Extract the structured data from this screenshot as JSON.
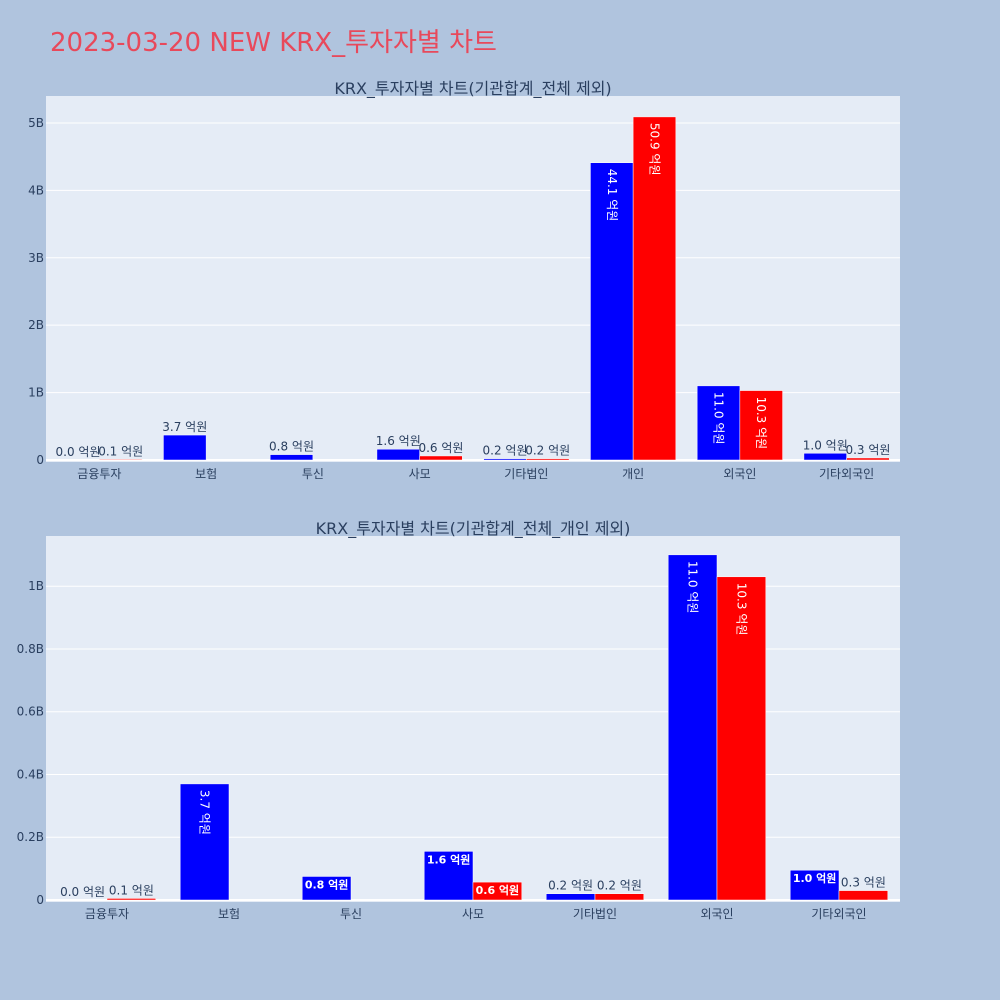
{
  "page_title": "2023-03-20 NEW KRX_투자자별 차트",
  "colors": {
    "series_a": "#0000ff",
    "series_b": "#ff0000",
    "plot_bg": "#e5ecf6",
    "page_bg": "#b0c4de",
    "title": "#e8495b"
  },
  "chart_data": [
    {
      "type": "bar",
      "title": "KRX_투자자별 차트(기관합계_전체 제외)",
      "xlabel": "",
      "ylabel": "",
      "ylim": [
        0,
        5400000000
      ],
      "yticks": [
        0,
        1000000000,
        2000000000,
        3000000000,
        4000000000,
        5000000000
      ],
      "ytick_labels": [
        "0",
        "1B",
        "2B",
        "3B",
        "4B",
        "5B"
      ],
      "grid": true,
      "legend": "none",
      "categories": [
        "금융투자",
        "보험",
        "투신",
        "사모",
        "기타법인",
        "개인",
        "외국인",
        "기타외국인"
      ],
      "series": [
        {
          "color": "#0000ff",
          "values": [
            0,
            370000000,
            80000000,
            160000000,
            20000000,
            4410000000,
            1100000000,
            100000000
          ],
          "labels": [
            "0.0 억원",
            "3.7 억원",
            "0.8 억원",
            "1.6 억원",
            "0.2 억원",
            "44.1 억원",
            "11.0 억원",
            "1.0 억원"
          ]
        },
        {
          "color": "#ff0000",
          "values": [
            10000000,
            0,
            0,
            60000000,
            20000000,
            5090000000,
            1030000000,
            30000000
          ],
          "labels": [
            "0.1 억원",
            "",
            "",
            "0.6 억원",
            "0.2 억원",
            "50.9 억원",
            "10.3 억원",
            "0.3 억원"
          ]
        }
      ]
    },
    {
      "type": "bar",
      "title": "KRX_투자자별 차트(기관합계_전체_개인 제외)",
      "xlabel": "",
      "ylabel": "",
      "ylim": [
        0,
        1160000000
      ],
      "yticks": [
        0,
        200000000,
        400000000,
        600000000,
        800000000,
        1000000000
      ],
      "ytick_labels": [
        "0",
        "0.2B",
        "0.4B",
        "0.6B",
        "0.8B",
        "1B"
      ],
      "grid": true,
      "legend": "none",
      "categories": [
        "금융투자",
        "보험",
        "투신",
        "사모",
        "기타법인",
        "외국인",
        "기타외국인"
      ],
      "series": [
        {
          "color": "#0000ff",
          "values": [
            0,
            370000000,
            75000000,
            155000000,
            20000000,
            1100000000,
            95000000
          ],
          "labels": [
            "0.0 억원",
            "3.7 억원",
            "0.8 억원",
            "1.6 억원",
            "0.2 억원",
            "11.0 억원",
            "1.0 억원"
          ]
        },
        {
          "color": "#ff0000",
          "values": [
            5000000,
            0,
            0,
            57000000,
            20000000,
            1030000000,
            30000000
          ],
          "labels": [
            "0.1 억원",
            "",
            "",
            "0.6 억원",
            "0.2 억원",
            "10.3 억원",
            "0.3 억원"
          ]
        }
      ]
    }
  ]
}
